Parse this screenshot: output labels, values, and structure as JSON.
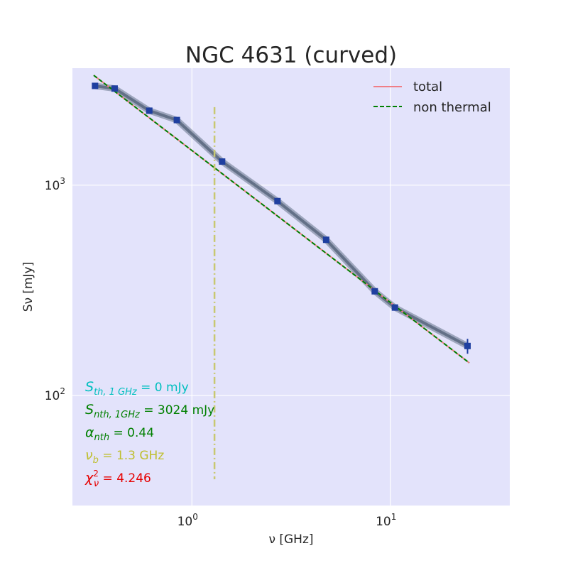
{
  "chart_data": {
    "type": "scatter",
    "title": "NGC 4631 (curved)",
    "xlabel": "ν [GHz]",
    "ylabel": "Sν [mJy]",
    "xscale": "log",
    "yscale": "log",
    "xlim": [
      0.25,
      40
    ],
    "ylim": [
      30,
      3600
    ],
    "xticks": [
      {
        "value": 1,
        "base": "10",
        "exp": "0"
      },
      {
        "value": 10,
        "base": "10",
        "exp": "1"
      }
    ],
    "yticks": [
      {
        "value": 100,
        "base": "10",
        "exp": "2"
      },
      {
        "value": 1000,
        "base": "10",
        "exp": "3"
      }
    ],
    "grid": true,
    "legend_position": "top-right",
    "colors": {
      "background": "#e3e3fb",
      "grid": "#ffffff",
      "total": "#f07e86",
      "nonthermal": "#008000",
      "points": "#1f3fa0",
      "band": "#4a5a70",
      "break": "#c8c870"
    },
    "series": [
      {
        "name": "total",
        "kind": "line",
        "x": [
          0.32,
          25
        ],
        "y": [
          3330,
          143
        ]
      },
      {
        "name": "non thermal",
        "kind": "dashed-line",
        "x": [
          0.32,
          25
        ],
        "y": [
          3330,
          143
        ]
      },
      {
        "kind": "points",
        "x": [
          0.325,
          0.408,
          0.61,
          0.84,
          1.42,
          2.7,
          4.75,
          8.35,
          10.55,
          24.5
        ],
        "y": [
          2965,
          2880,
          2260,
          2040,
          1295,
          840,
          550,
          313,
          262,
          172
        ],
        "yerr": [
          40,
          40,
          40,
          40,
          30,
          20,
          12,
          10,
          8,
          14
        ]
      }
    ],
    "vline": {
      "x": 1.3,
      "ymin": 40,
      "ymax": 2350
    },
    "annotations": [
      {
        "key": "s_th",
        "pre": "S",
        "sub": "th, 1 GHz",
        "value": " = 0 mJy",
        "color": "#00bfbf"
      },
      {
        "key": "s_nth",
        "pre": "S",
        "sub": "nth, 1GHz",
        "value": " = 3024 mJy",
        "color": "#008000"
      },
      {
        "key": "alpha",
        "pre": "α",
        "sub": "nth",
        "value": " = 0.44",
        "color": "#008000"
      },
      {
        "key": "nu_b",
        "pre": "ν",
        "sub": "b",
        "value": " = 1.3 GHz",
        "color": "#bfbf30"
      },
      {
        "key": "chi",
        "pre": "χ",
        "sub": "ν",
        "sup": "2",
        "value": " = 4.246",
        "color": "#e60000"
      }
    ]
  }
}
